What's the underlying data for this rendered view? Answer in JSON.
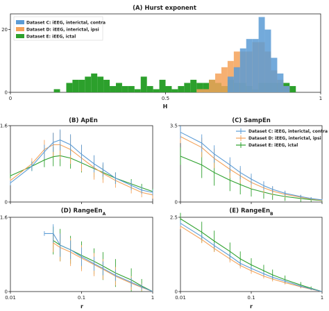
{
  "colors": {
    "C": "#5b9bd5",
    "D": "#f4a259",
    "E": "#2ca02c",
    "overlapCD": "#c99b6a"
  },
  "panels": {
    "A": {
      "title": "(A) Hurst exponent"
    },
    "B": {
      "title": "(B) ApEn"
    },
    "C": {
      "title": "(C) SampEn"
    },
    "D": {
      "title": "(D) RangeEn",
      "sub": "A"
    },
    "E": {
      "title": "(E) RangeEn",
      "sub": "B"
    }
  },
  "chart_data": [
    {
      "id": "A",
      "type": "bar",
      "title": "(A) Hurst exponent",
      "xlabel": "H",
      "ylabel": "",
      "xlim": [
        0,
        1
      ],
      "ylim": [
        0,
        25
      ],
      "xticks": [
        "0",
        "0.5",
        "1"
      ],
      "yticks": [
        "0",
        "20"
      ],
      "bin_width": 0.02,
      "legend": {
        "placement": "top-left",
        "entries": [
          "Dataset C: iEEG, interictal, contra",
          "Dataset D: iEEG, interictal, ipsi",
          "Dataset E: iEEG, ictal"
        ]
      },
      "series": [
        {
          "name": "Dataset C: iEEG, interictal, contra",
          "key": "C",
          "bins": [
            0.7,
            0.72,
            0.74,
            0.76,
            0.78,
            0.8,
            0.82,
            0.84,
            0.86,
            0.88
          ],
          "values": [
            5,
            8,
            14,
            17,
            17,
            24,
            20,
            11,
            6,
            2
          ]
        },
        {
          "name": "Dataset D: iEEG, interictal, ipsi",
          "key": "D",
          "bins": [
            0.6,
            0.62,
            0.64,
            0.66,
            0.68,
            0.7,
            0.72,
            0.74,
            0.76,
            0.78,
            0.8,
            0.82,
            0.84,
            0.86,
            0.88
          ],
          "values": [
            1,
            1,
            4,
            6,
            8,
            10,
            13,
            13,
            13,
            16,
            16,
            13,
            7,
            4,
            2
          ]
        },
        {
          "name": "Dataset E: iEEG, ictal",
          "key": "E",
          "bins": [
            0.14,
            0.16,
            0.18,
            0.2,
            0.22,
            0.24,
            0.26,
            0.28,
            0.3,
            0.32,
            0.34,
            0.36,
            0.38,
            0.4,
            0.42,
            0.44,
            0.46,
            0.48,
            0.5,
            0.52,
            0.54,
            0.56,
            0.58,
            0.6,
            0.62,
            0.64,
            0.66,
            0.68,
            0.7,
            0.72,
            0.74,
            0.76,
            0.78,
            0.8,
            0.82,
            0.84,
            0.86,
            0.88,
            0.9
          ],
          "values": [
            1,
            0,
            3,
            4,
            4,
            5,
            6,
            5,
            4,
            2,
            3,
            2,
            2,
            1,
            5,
            2,
            1,
            4,
            2,
            1,
            2,
            3,
            4,
            3,
            3,
            4,
            3,
            2,
            4,
            3,
            3,
            2,
            1,
            3,
            3,
            3,
            3,
            3,
            2
          ]
        }
      ]
    },
    {
      "id": "B",
      "type": "line",
      "title": "(B) ApEn",
      "xlabel": "",
      "ylabel": "",
      "xscale": "log",
      "xlim": [
        0.01,
        1
      ],
      "ylim": [
        0,
        1.6
      ],
      "yticks": [
        "0",
        "1.6"
      ],
      "errorbars": true,
      "series": [
        {
          "key": "C",
          "x": [
            0.01,
            0.02,
            0.03,
            0.04,
            0.05,
            0.07,
            0.1,
            0.15,
            0.2,
            0.3,
            0.5,
            0.7,
            1.0
          ],
          "y": [
            0.4,
            0.75,
            1.05,
            1.25,
            1.3,
            1.2,
            1.0,
            0.8,
            0.68,
            0.5,
            0.35,
            0.25,
            0.2
          ],
          "err": [
            0.05,
            0.1,
            0.15,
            0.2,
            0.22,
            0.22,
            0.2,
            0.18,
            0.15,
            0.12,
            0.1,
            0.08,
            0.06
          ]
        },
        {
          "key": "D",
          "x": [
            0.01,
            0.02,
            0.03,
            0.04,
            0.05,
            0.07,
            0.1,
            0.15,
            0.2,
            0.3,
            0.5,
            0.7,
            1.0
          ],
          "y": [
            0.45,
            0.8,
            1.1,
            1.2,
            1.2,
            1.1,
            0.92,
            0.72,
            0.6,
            0.45,
            0.3,
            0.2,
            0.15
          ],
          "err": [
            0.05,
            0.12,
            0.2,
            0.25,
            0.3,
            0.3,
            0.28,
            0.25,
            0.2,
            0.15,
            0.12,
            0.1,
            0.08
          ]
        },
        {
          "key": "E",
          "x": [
            0.01,
            0.02,
            0.03,
            0.04,
            0.05,
            0.07,
            0.1,
            0.15,
            0.2,
            0.3,
            0.5,
            0.7,
            1.0
          ],
          "y": [
            0.55,
            0.75,
            0.88,
            0.95,
            0.97,
            0.92,
            0.82,
            0.7,
            0.62,
            0.5,
            0.38,
            0.3,
            0.22
          ],
          "err": [
            0.05,
            0.1,
            0.15,
            0.2,
            0.22,
            0.22,
            0.2,
            0.18,
            0.15,
            0.12,
            0.1,
            0.08,
            0.06
          ]
        }
      ]
    },
    {
      "id": "C",
      "type": "line",
      "title": "(C) SampEn",
      "xlabel": "",
      "ylabel": "",
      "xscale": "log",
      "xlim": [
        0.01,
        1
      ],
      "ylim": [
        0,
        3.5
      ],
      "yticks": [
        "0",
        "3.5"
      ],
      "errorbars": true,
      "legend": {
        "placement": "top-right",
        "entries": [
          "Dataset C: iEEG, interictal, contra",
          "Dataset D: iEEG, interictal, ipsi",
          "Dataset E: iEEG, ictal"
        ]
      },
      "series": [
        {
          "key": "C",
          "name": "Dataset C: iEEG, interictal, contra",
          "x": [
            0.01,
            0.02,
            0.03,
            0.05,
            0.07,
            0.1,
            0.15,
            0.2,
            0.3,
            0.5,
            0.7,
            1.0
          ],
          "y": [
            3.2,
            2.7,
            2.2,
            1.7,
            1.35,
            1.05,
            0.75,
            0.58,
            0.4,
            0.25,
            0.16,
            0.1
          ],
          "err": [
            0.3,
            0.4,
            0.4,
            0.35,
            0.3,
            0.25,
            0.2,
            0.15,
            0.12,
            0.08,
            0.06,
            0.04
          ]
        },
        {
          "key": "D",
          "name": "Dataset D: iEEG, interictal, ipsi",
          "x": [
            0.01,
            0.02,
            0.03,
            0.05,
            0.07,
            0.1,
            0.15,
            0.2,
            0.3,
            0.5,
            0.7,
            1.0
          ],
          "y": [
            3.0,
            2.5,
            2.0,
            1.5,
            1.2,
            0.9,
            0.65,
            0.5,
            0.35,
            0.22,
            0.14,
            0.08
          ],
          "err": [
            0.3,
            0.45,
            0.45,
            0.4,
            0.35,
            0.3,
            0.25,
            0.2,
            0.15,
            0.1,
            0.07,
            0.05
          ]
        },
        {
          "key": "E",
          "name": "Dataset E: iEEG, ictal",
          "x": [
            0.01,
            0.02,
            0.03,
            0.05,
            0.07,
            0.1,
            0.15,
            0.2,
            0.3,
            0.5,
            0.7,
            1.0
          ],
          "y": [
            2.1,
            1.7,
            1.35,
            1.0,
            0.8,
            0.6,
            0.45,
            0.35,
            0.25,
            0.16,
            0.11,
            0.07
          ],
          "err": [
            0.4,
            0.6,
            0.6,
            0.5,
            0.45,
            0.35,
            0.3,
            0.25,
            0.2,
            0.15,
            0.1,
            0.06
          ]
        }
      ]
    },
    {
      "id": "D",
      "type": "line",
      "title": "(D) RangeEnA",
      "xlabel": "r",
      "ylabel": "",
      "xscale": "log",
      "xlim": [
        0.01,
        1
      ],
      "ylim": [
        0,
        1.6
      ],
      "xticks": [
        "0.01",
        "0.1",
        "1"
      ],
      "yticks": [
        "0",
        "1.6"
      ],
      "errorbars": true,
      "series": [
        {
          "key": "C",
          "x": [
            0.03,
            0.04,
            0.05,
            0.07,
            0.1,
            0.15,
            0.2,
            0.3,
            0.5,
            0.7,
            1.0
          ],
          "y": [
            1.25,
            1.25,
            1.0,
            0.9,
            0.75,
            0.6,
            0.5,
            0.35,
            0.2,
            0.1,
            0.0
          ],
          "err": [
            0.05,
            0.2,
            0.25,
            0.2,
            0.2,
            0.15,
            0.15,
            0.12,
            0.1,
            0.06,
            0.0
          ]
        },
        {
          "key": "D",
          "x": [
            0.04,
            0.05,
            0.07,
            0.1,
            0.15,
            0.2,
            0.3,
            0.5,
            0.7,
            1.0
          ],
          "y": [
            1.05,
            0.95,
            0.85,
            0.72,
            0.58,
            0.48,
            0.33,
            0.18,
            0.09,
            0.0
          ],
          "err": [
            0.2,
            0.3,
            0.3,
            0.28,
            0.25,
            0.22,
            0.2,
            0.15,
            0.08,
            0.0
          ]
        },
        {
          "key": "E",
          "x": [
            0.04,
            0.05,
            0.07,
            0.1,
            0.15,
            0.2,
            0.3,
            0.5,
            0.7,
            1.0
          ],
          "y": [
            1.1,
            1.0,
            0.9,
            0.78,
            0.65,
            0.55,
            0.4,
            0.25,
            0.12,
            0.0
          ],
          "err": [
            0.3,
            0.35,
            0.3,
            0.3,
            0.28,
            0.3,
            0.3,
            0.25,
            0.15,
            0.0
          ]
        }
      ]
    },
    {
      "id": "E",
      "type": "line",
      "title": "(E) RangeEnB",
      "xlabel": "r",
      "ylabel": "",
      "xscale": "log",
      "xlim": [
        0.01,
        1
      ],
      "ylim": [
        0,
        2.5
      ],
      "xticks": [
        "0.01",
        "0.1",
        "1"
      ],
      "yticks": [
        "0",
        "2.5"
      ],
      "errorbars": true,
      "series": [
        {
          "key": "C",
          "x": [
            0.01,
            0.02,
            0.03,
            0.05,
            0.07,
            0.1,
            0.15,
            0.2,
            0.3,
            0.5,
            0.7,
            1.0
          ],
          "y": [
            2.3,
            1.85,
            1.55,
            1.2,
            0.95,
            0.78,
            0.6,
            0.48,
            0.35,
            0.18,
            0.09,
            0.0
          ],
          "err": [
            0.1,
            0.1,
            0.1,
            0.1,
            0.08,
            0.08,
            0.07,
            0.06,
            0.05,
            0.04,
            0.03,
            0.0
          ]
        },
        {
          "key": "D",
          "x": [
            0.01,
            0.02,
            0.03,
            0.05,
            0.07,
            0.1,
            0.15,
            0.2,
            0.3,
            0.5,
            0.7,
            1.0
          ],
          "y": [
            2.2,
            1.75,
            1.45,
            1.1,
            0.88,
            0.7,
            0.52,
            0.42,
            0.3,
            0.16,
            0.08,
            0.0
          ],
          "err": [
            0.1,
            0.12,
            0.12,
            0.12,
            0.1,
            0.1,
            0.08,
            0.08,
            0.06,
            0.05,
            0.03,
            0.0
          ]
        },
        {
          "key": "E",
          "x": [
            0.01,
            0.02,
            0.03,
            0.05,
            0.07,
            0.1,
            0.15,
            0.2,
            0.3,
            0.5,
            0.7,
            1.0
          ],
          "y": [
            2.45,
            2.0,
            1.7,
            1.35,
            1.1,
            0.9,
            0.7,
            0.56,
            0.4,
            0.22,
            0.11,
            0.0
          ],
          "err": [
            0.2,
            0.35,
            0.35,
            0.3,
            0.25,
            0.22,
            0.2,
            0.18,
            0.14,
            0.1,
            0.06,
            0.0
          ]
        }
      ]
    }
  ]
}
